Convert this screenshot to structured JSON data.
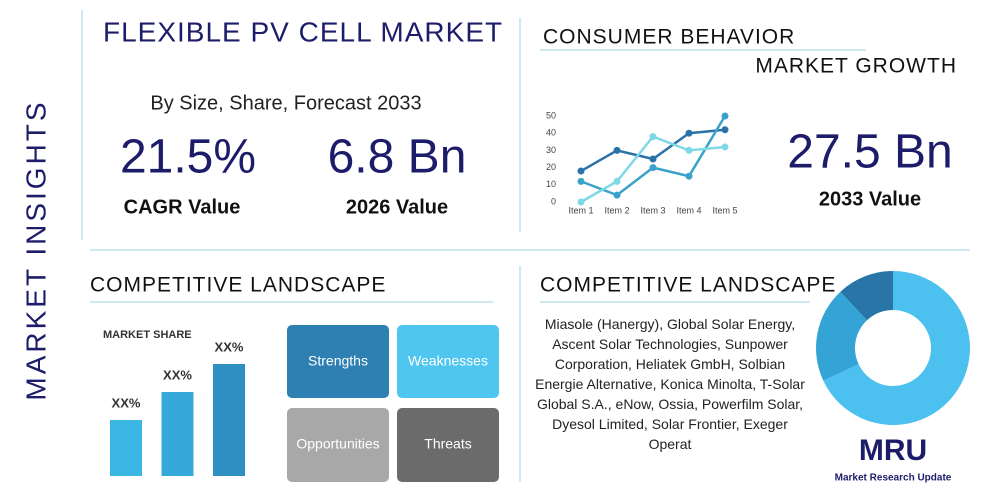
{
  "side_label": "MARKET INSIGHTS",
  "header": {
    "title": "FLEXIBLE PV CELL MARKET",
    "subtitle": "By Size, Share, Forecast 2033"
  },
  "stats": [
    {
      "value": "21.5%",
      "label": "CAGR Value"
    },
    {
      "value": "6.8 Bn",
      "label": "2026 Value"
    }
  ],
  "consumer": {
    "title": "CONSUMER BEHAVIOR",
    "subtitle": "MARKET GROWTH",
    "stat": {
      "value": "27.5 Bn",
      "label": "2033 Value"
    }
  },
  "competitive_left": {
    "title": "COMPETITIVE LANDSCAPE",
    "swot": [
      "Strengths",
      "Weaknesses",
      "Opportunities",
      "Threats"
    ]
  },
  "competitive_right": {
    "title": "COMPETITIVE LANDSCAPE",
    "companies": "Miasole (Hanergy), Global Solar Energy, Ascent Solar Technologies, Sunpower Corporation, Heliatek GmbH, Solbian Energie Alternative, Konica Minolta, T-Solar Global S.A., eNow, Ossia, Powerfilm Solar, Dyesol Limited, Solar Frontier, Exeger Operat"
  },
  "logo": {
    "mark": "MRU",
    "name": "Market Research Update"
  },
  "chart_data": [
    {
      "type": "line",
      "categories": [
        "Item 1",
        "Item 2",
        "Item 3",
        "Item 4",
        "Item 5"
      ],
      "series": [
        {
          "color": "#2a72a8",
          "values": [
            18,
            30,
            25,
            40,
            42
          ]
        },
        {
          "color": "#3aa2c8",
          "values": [
            12,
            4,
            20,
            15,
            50
          ]
        },
        {
          "color": "#7fd8e6",
          "values": [
            0,
            12,
            38,
            30,
            32
          ]
        }
      ],
      "ylim": [
        0,
        50
      ],
      "yticks": [
        0,
        10,
        20,
        30,
        40,
        50
      ],
      "grid": false
    },
    {
      "type": "bar",
      "title": "MARKET SHARE",
      "values": [
        50,
        75,
        100
      ],
      "value_labels": [
        "XX%",
        "XX%",
        "XX%"
      ],
      "colors": [
        "#3cb6e2",
        "#36a9db",
        "#2e8fc2"
      ]
    },
    {
      "type": "pie",
      "values": [
        68,
        20,
        12
      ],
      "colors": [
        "#4cc0ef",
        "#34a3d6",
        "#2a75a8"
      ]
    }
  ]
}
